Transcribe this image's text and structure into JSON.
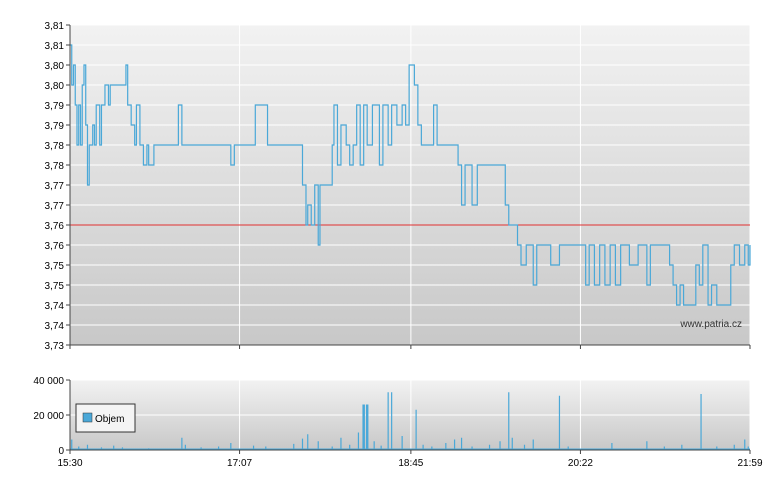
{
  "chart_data": [
    {
      "type": "line",
      "title": "",
      "xlabel": "",
      "ylabel": "",
      "ylim": [
        3.73,
        3.81
      ],
      "y_ticks": [
        "3,81",
        "3,81",
        "3,80",
        "3,80",
        "3,79",
        "3,79",
        "3,78",
        "3,78",
        "3,77",
        "3,77",
        "3,76",
        "3,76",
        "3,75",
        "3,75",
        "3,74",
        "3,74",
        "3,73"
      ],
      "x_ticks": [
        "15:30",
        "17:07",
        "18:45",
        "20:22",
        "21:59"
      ],
      "x_range": [
        "15:30",
        "21:59"
      ],
      "reference_line": {
        "value": 3.76,
        "color": "#e03030"
      },
      "series": [
        {
          "color": "#4aa8d8",
          "points": [
            [
              "15:30",
              3.805
            ],
            [
              "15:31",
              3.795
            ],
            [
              "15:32",
              3.8
            ],
            [
              "15:33",
              3.79
            ],
            [
              "15:34",
              3.78
            ],
            [
              "15:35",
              3.79
            ],
            [
              "15:36",
              3.78
            ],
            [
              "15:37",
              3.795
            ],
            [
              "15:38",
              3.8
            ],
            [
              "15:39",
              3.785
            ],
            [
              "15:40",
              3.77
            ],
            [
              "15:41",
              3.78
            ],
            [
              "15:43",
              3.785
            ],
            [
              "15:44",
              3.78
            ],
            [
              "15:45",
              3.79
            ],
            [
              "15:47",
              3.78
            ],
            [
              "15:48",
              3.79
            ],
            [
              "15:50",
              3.795
            ],
            [
              "15:52",
              3.79
            ],
            [
              "15:53",
              3.795
            ],
            [
              "16:00",
              3.795
            ],
            [
              "16:02",
              3.8
            ],
            [
              "16:03",
              3.79
            ],
            [
              "16:05",
              3.785
            ],
            [
              "16:07",
              3.78
            ],
            [
              "16:08",
              3.79
            ],
            [
              "16:10",
              3.78
            ],
            [
              "16:12",
              3.775
            ],
            [
              "16:14",
              3.78
            ],
            [
              "16:15",
              3.775
            ],
            [
              "16:18",
              3.78
            ],
            [
              "16:30",
              3.78
            ],
            [
              "16:32",
              3.79
            ],
            [
              "16:34",
              3.78
            ],
            [
              "16:38",
              3.78
            ],
            [
              "16:50",
              3.78
            ],
            [
              "17:00",
              3.78
            ],
            [
              "17:02",
              3.775
            ],
            [
              "17:04",
              3.78
            ],
            [
              "17:07",
              3.78
            ],
            [
              "17:14",
              3.78
            ],
            [
              "17:16",
              3.79
            ],
            [
              "17:20",
              3.79
            ],
            [
              "17:23",
              3.78
            ],
            [
              "17:40",
              3.78
            ],
            [
              "17:43",
              3.77
            ],
            [
              "17:45",
              3.76
            ],
            [
              "17:46",
              3.765
            ],
            [
              "17:48",
              3.76
            ],
            [
              "17:50",
              3.77
            ],
            [
              "17:52",
              3.755
            ],
            [
              "17:53",
              3.77
            ],
            [
              "17:58",
              3.77
            ],
            [
              "18:00",
              3.78
            ],
            [
              "18:01",
              3.79
            ],
            [
              "18:03",
              3.775
            ],
            [
              "18:05",
              3.785
            ],
            [
              "18:08",
              3.78
            ],
            [
              "18:10",
              3.775
            ],
            [
              "18:12",
              3.78
            ],
            [
              "18:14",
              3.79
            ],
            [
              "18:16",
              3.775
            ],
            [
              "18:18",
              3.79
            ],
            [
              "18:20",
              3.78
            ],
            [
              "18:23",
              3.79
            ],
            [
              "18:27",
              3.775
            ],
            [
              "18:29",
              3.79
            ],
            [
              "18:32",
              3.78
            ],
            [
              "18:34",
              3.79
            ],
            [
              "18:37",
              3.785
            ],
            [
              "18:40",
              3.79
            ],
            [
              "18:42",
              3.785
            ],
            [
              "18:44",
              3.8
            ],
            [
              "18:47",
              3.795
            ],
            [
              "18:49",
              3.785
            ],
            [
              "18:51",
              3.78
            ],
            [
              "18:55",
              3.78
            ],
            [
              "18:58",
              3.79
            ],
            [
              "19:00",
              3.78
            ],
            [
              "19:08",
              3.78
            ],
            [
              "19:12",
              3.775
            ],
            [
              "19:14",
              3.765
            ],
            [
              "19:16",
              3.775
            ],
            [
              "19:18",
              3.775
            ],
            [
              "19:20",
              3.765
            ],
            [
              "19:23",
              3.775
            ],
            [
              "19:37",
              3.775
            ],
            [
              "19:39",
              3.765
            ],
            [
              "19:41",
              3.76
            ],
            [
              "19:44",
              3.76
            ],
            [
              "19:46",
              3.755
            ],
            [
              "19:48",
              3.75
            ],
            [
              "19:51",
              3.755
            ],
            [
              "19:53",
              3.755
            ],
            [
              "19:55",
              3.745
            ],
            [
              "19:57",
              3.755
            ],
            [
              "20:00",
              3.755
            ],
            [
              "20:05",
              3.75
            ],
            [
              "20:10",
              3.755
            ],
            [
              "20:22",
              3.755
            ],
            [
              "20:25",
              3.745
            ],
            [
              "20:27",
              3.755
            ],
            [
              "20:30",
              3.745
            ],
            [
              "20:33",
              3.755
            ],
            [
              "20:36",
              3.745
            ],
            [
              "20:39",
              3.755
            ],
            [
              "20:42",
              3.745
            ],
            [
              "20:45",
              3.755
            ],
            [
              "20:50",
              3.75
            ],
            [
              "20:55",
              3.755
            ],
            [
              "21:00",
              3.745
            ],
            [
              "21:02",
              3.755
            ],
            [
              "21:10",
              3.755
            ],
            [
              "21:13",
              3.75
            ],
            [
              "21:15",
              3.745
            ],
            [
              "21:17",
              3.74
            ],
            [
              "21:19",
              3.745
            ],
            [
              "21:21",
              3.74
            ],
            [
              "21:25",
              3.74
            ],
            [
              "21:28",
              3.75
            ],
            [
              "21:30",
              3.745
            ],
            [
              "21:32",
              3.755
            ],
            [
              "21:35",
              3.74
            ],
            [
              "21:37",
              3.745
            ],
            [
              "21:40",
              3.74
            ],
            [
              "21:45",
              3.74
            ],
            [
              "21:48",
              3.75
            ],
            [
              "21:50",
              3.755
            ],
            [
              "21:53",
              3.75
            ],
            [
              "21:56",
              3.755
            ],
            [
              "21:58",
              3.75
            ],
            [
              "21:59",
              3.755
            ]
          ]
        }
      ],
      "watermark": "www.patria.cz",
      "grid": true
    },
    {
      "type": "bar",
      "title": "",
      "ylim": [
        0,
        40000
      ],
      "y_ticks": [
        "40 000",
        "20 000",
        "0"
      ],
      "x_ticks": [
        "15:30",
        "17:07",
        "18:45",
        "20:22",
        "21:59"
      ],
      "legend": {
        "position": "left",
        "entries": [
          "Objem"
        ]
      },
      "series": [
        {
          "name": "Objem",
          "color": "#4aa8d8",
          "points": [
            [
              "15:31",
              6000
            ],
            [
              "15:35",
              2000
            ],
            [
              "15:40",
              3000
            ],
            [
              "15:48",
              1500
            ],
            [
              "15:55",
              2500
            ],
            [
              "16:00",
              1500
            ],
            [
              "16:15",
              1000
            ],
            [
              "16:34",
              7000
            ],
            [
              "16:36",
              3000
            ],
            [
              "16:45",
              1500
            ],
            [
              "16:55",
              2000
            ],
            [
              "17:02",
              4000
            ],
            [
              "17:15",
              2500
            ],
            [
              "17:22",
              2000
            ],
            [
              "17:38",
              3500
            ],
            [
              "17:43",
              6500
            ],
            [
              "17:46",
              9000
            ],
            [
              "17:52",
              5000
            ],
            [
              "18:00",
              2000
            ],
            [
              "18:05",
              7000
            ],
            [
              "18:10",
              3000
            ],
            [
              "18:15",
              10000
            ],
            [
              "18:18",
              26000
            ],
            [
              "18:20",
              26000
            ],
            [
              "18:24",
              5000
            ],
            [
              "18:28",
              2500
            ],
            [
              "18:32",
              33000
            ],
            [
              "18:34",
              33000
            ],
            [
              "18:40",
              8000
            ],
            [
              "18:48",
              23000
            ],
            [
              "18:52",
              3000
            ],
            [
              "18:57",
              2000
            ],
            [
              "19:05",
              4000
            ],
            [
              "19:10",
              6000
            ],
            [
              "19:14",
              7000
            ],
            [
              "19:20",
              2000
            ],
            [
              "19:30",
              3000
            ],
            [
              "19:36",
              5000
            ],
            [
              "19:41",
              33000
            ],
            [
              "19:43",
              7000
            ],
            [
              "19:50",
              3000
            ],
            [
              "19:55",
              6000
            ],
            [
              "20:10",
              31000
            ],
            [
              "20:15",
              2000
            ],
            [
              "20:40",
              4000
            ],
            [
              "21:00",
              5000
            ],
            [
              "21:10",
              2000
            ],
            [
              "21:20",
              3000
            ],
            [
              "21:31",
              32000
            ],
            [
              "21:40",
              2000
            ],
            [
              "21:50",
              3000
            ],
            [
              "21:56",
              6000
            ],
            [
              "21:58",
              2000
            ]
          ]
        }
      ],
      "grid": true
    }
  ]
}
